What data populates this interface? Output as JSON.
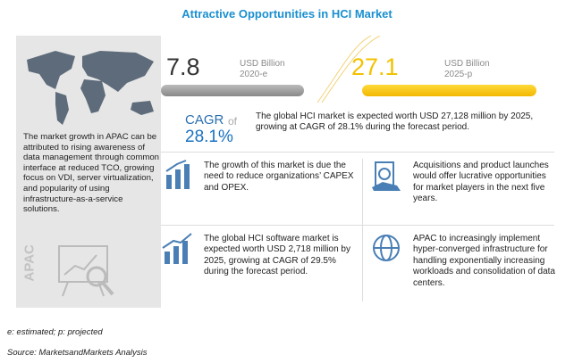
{
  "title": "Attractive Opportunities in HCI Market",
  "left_panel": {
    "text": "The market growth in APAC can be attributed to rising awareness of data management through common interface at reduced TCO, growing focus on VDI, server virtualization, and popularity of using infrastructure-as-a-service solutions.",
    "label": "APAC"
  },
  "stats": [
    {
      "value": "7.8",
      "unit": "USD Billion",
      "year": "2020-e"
    },
    {
      "value": "27.1",
      "unit": "USD Billion",
      "year": "2025-p"
    }
  ],
  "cagr": {
    "label": "CAGR",
    "of": "of",
    "value": "28.1%",
    "text": "The global HCI market is expected worth USD 27,128 million by 2025, growing at CAGR of 28.1% during the forecast period."
  },
  "highlights": [
    "The growth of this market is due the need to reduce organizations’ CAPEX and OPEX.",
    "Acquisitions and product launches would offer lucrative opportunities for market players in the next five years.",
    "The global HCI software market is expected worth USD 2,718 million by 2025, growing at CAGR of 29.5% during the forecast period.",
    "APAC to increasingly implement hyper-converged infrastructure for handling exponentially increasing workloads and consolidation of data centers."
  ],
  "footnotes": [
    "e: estimated; p: projected",
    "Source: MarketsandMarkets Analysis"
  ]
}
